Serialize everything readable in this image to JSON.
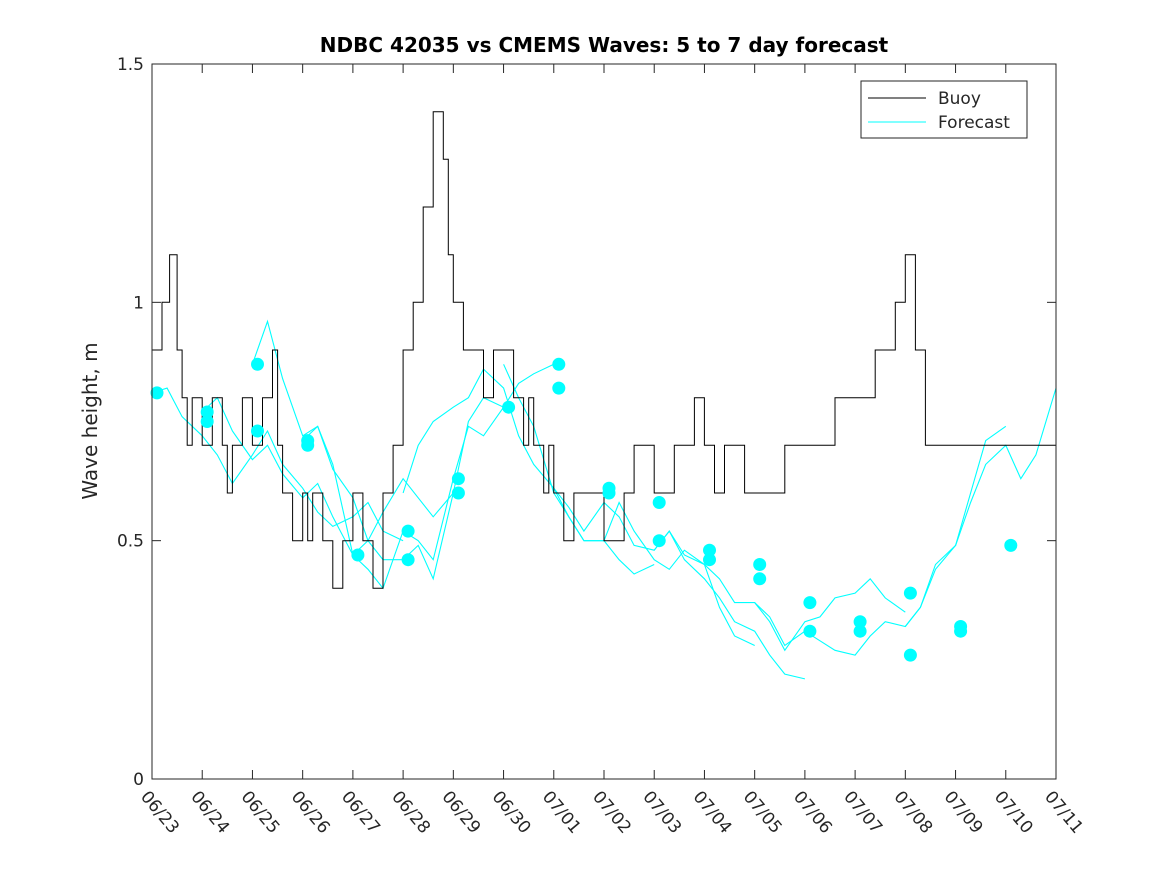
{
  "chart_data": {
    "type": "line",
    "title": "NDBC 42035 vs CMEMS Waves: 5 to 7 day forecast",
    "xlabel": "",
    "ylabel": "Wave height, m",
    "xlim": [
      "06/23",
      "07/11"
    ],
    "ylim": [
      0,
      1.5
    ],
    "xticks": [
      "06/23",
      "06/24",
      "06/25",
      "06/26",
      "06/27",
      "06/28",
      "06/29",
      "06/30",
      "07/01",
      "07/02",
      "07/03",
      "07/04",
      "07/05",
      "07/06",
      "07/07",
      "07/08",
      "07/09",
      "07/10",
      "07/11"
    ],
    "yticks": [
      "0",
      "0.5",
      "1",
      "1.5"
    ],
    "grid": false,
    "legend_position": "top-right",
    "legend": [
      {
        "label": "Buoy",
        "color": "#000000"
      },
      {
        "label": "Forecast",
        "color": "#00ffff"
      }
    ],
    "colors": {
      "buoy": "#000000",
      "forecast": "#00ffff"
    },
    "buoy": {
      "name": "Buoy",
      "x": [
        0.0,
        0.2,
        0.3,
        0.35,
        0.5,
        0.6,
        0.7,
        0.8,
        1.0,
        1.2,
        1.4,
        1.5,
        1.6,
        1.7,
        1.8,
        2.0,
        2.2,
        2.4,
        2.5,
        2.6,
        2.8,
        3.0,
        3.1,
        3.2,
        3.4,
        3.6,
        3.8,
        4.0,
        4.2,
        4.4,
        4.5,
        4.6,
        4.8,
        5.0,
        5.2,
        5.4,
        5.6,
        5.8,
        5.9,
        6.0,
        6.2,
        6.4,
        6.6,
        6.8,
        7.0,
        7.2,
        7.4,
        7.5,
        7.6,
        7.7,
        7.8,
        7.9,
        8.0,
        8.2,
        8.4,
        8.6,
        8.8,
        9.0,
        9.2,
        9.4,
        9.6,
        9.8,
        10.0,
        10.2,
        10.4,
        10.6,
        10.8,
        11.0,
        11.2,
        11.4,
        11.6,
        11.8,
        12.0,
        12.2,
        12.4,
        12.6,
        12.8,
        13.0,
        13.2,
        13.4,
        13.6,
        13.8,
        14.0,
        14.2,
        14.4,
        14.6,
        14.8,
        15.0,
        15.2,
        15.4,
        15.6,
        15.8,
        16.0,
        16.2,
        16.4,
        16.6,
        16.8,
        17.0,
        17.2,
        17.4,
        17.6,
        17.8,
        18.0
      ],
      "values": [
        0.9,
        1.0,
        1.0,
        1.1,
        0.9,
        0.8,
        0.7,
        0.8,
        0.7,
        0.8,
        0.7,
        0.6,
        0.7,
        0.7,
        0.8,
        0.7,
        0.8,
        0.9,
        0.7,
        0.6,
        0.5,
        0.6,
        0.5,
        0.6,
        0.5,
        0.4,
        0.5,
        0.6,
        0.5,
        0.4,
        0.4,
        0.6,
        0.7,
        0.9,
        1.0,
        1.2,
        1.4,
        1.3,
        1.1,
        1.0,
        0.9,
        0.9,
        0.8,
        0.9,
        0.9,
        0.8,
        0.7,
        0.8,
        0.7,
        0.7,
        0.6,
        0.7,
        0.6,
        0.5,
        0.6,
        0.6,
        0.6,
        0.5,
        0.5,
        0.6,
        0.7,
        0.7,
        0.6,
        0.6,
        0.7,
        0.7,
        0.8,
        0.7,
        0.6,
        0.7,
        0.7,
        0.6,
        0.6,
        0.6,
        0.6,
        0.7,
        0.7,
        0.7,
        0.7,
        0.7,
        0.8,
        0.8,
        0.8,
        0.8,
        0.9,
        0.9,
        1.0,
        1.1,
        0.9,
        0.7,
        0.7,
        0.7,
        0.7,
        0.7,
        0.7,
        0.7,
        0.7,
        0.7,
        0.7,
        0.7,
        0.7,
        0.7,
        0.7
      ]
    },
    "forecast_series": [
      {
        "x": [
          0.0,
          0.3,
          0.6,
          1.0,
          1.3,
          1.6,
          2.0,
          2.3,
          2.6,
          3.0,
          3.3,
          3.6,
          4.0,
          4.3,
          4.6,
          5.0
        ],
        "values": [
          0.81,
          0.82,
          0.76,
          0.72,
          0.68,
          0.62,
          0.68,
          0.73,
          0.66,
          0.61,
          0.56,
          0.53,
          0.55,
          0.58,
          0.52,
          0.5
        ]
      },
      {
        "x": [
          1.0,
          1.3,
          1.6,
          2.0,
          2.3,
          2.6,
          3.0,
          3.3,
          3.6,
          4.0,
          4.3,
          4.6,
          5.0,
          5.3,
          5.6,
          6.0
        ],
        "values": [
          0.77,
          0.8,
          0.73,
          0.67,
          0.7,
          0.64,
          0.59,
          0.62,
          0.55,
          0.47,
          0.5,
          0.56,
          0.63,
          0.59,
          0.55,
          0.6
        ]
      },
      {
        "x": [
          2.0,
          2.3,
          2.6,
          3.0,
          3.3,
          3.6,
          4.0,
          4.3,
          4.6,
          5.0,
          5.3,
          5.6,
          6.0,
          6.3,
          6.6,
          7.0
        ],
        "values": [
          0.87,
          0.96,
          0.84,
          0.72,
          0.74,
          0.66,
          0.47,
          0.44,
          0.4,
          0.52,
          0.5,
          0.46,
          0.63,
          0.74,
          0.72,
          0.78
        ]
      },
      {
        "x": [
          3.0,
          3.3,
          3.6,
          4.0,
          4.3,
          4.6,
          5.0,
          5.3,
          5.6,
          6.0,
          6.3,
          6.6,
          7.0,
          7.3,
          7.6,
          8.0
        ],
        "values": [
          0.71,
          0.74,
          0.65,
          0.59,
          0.5,
          0.46,
          0.46,
          0.49,
          0.42,
          0.6,
          0.75,
          0.8,
          0.78,
          0.83,
          0.85,
          0.87
        ]
      },
      {
        "x": [
          5.0,
          5.3,
          5.6,
          6.0,
          6.3,
          6.6,
          7.0,
          7.3,
          7.6,
          8.0,
          8.3,
          8.6,
          9.0,
          9.3,
          9.6,
          10.0
        ],
        "values": [
          0.6,
          0.7,
          0.75,
          0.78,
          0.8,
          0.86,
          0.82,
          0.72,
          0.66,
          0.61,
          0.55,
          0.5,
          0.5,
          0.46,
          0.43,
          0.45
        ]
      },
      {
        "x": [
          7.0,
          7.3,
          7.6,
          8.0,
          8.3,
          8.6,
          9.0,
          9.3,
          9.6,
          10.0,
          10.3,
          10.6,
          11.0,
          11.3,
          11.6,
          12.0
        ],
        "values": [
          0.87,
          0.8,
          0.74,
          0.6,
          0.55,
          0.5,
          0.5,
          0.58,
          0.52,
          0.46,
          0.44,
          0.48,
          0.45,
          0.36,
          0.3,
          0.28
        ]
      },
      {
        "x": [
          8.0,
          8.3,
          8.6,
          9.0,
          9.3,
          9.6,
          10.0,
          10.3,
          10.6,
          11.0,
          11.3,
          11.6,
          12.0,
          12.3,
          12.6,
          13.0
        ],
        "values": [
          0.61,
          0.57,
          0.52,
          0.58,
          0.55,
          0.49,
          0.48,
          0.52,
          0.46,
          0.42,
          0.38,
          0.33,
          0.31,
          0.26,
          0.22,
          0.21
        ]
      },
      {
        "x": [
          10.0,
          10.3,
          10.6,
          11.0,
          11.3,
          11.6,
          12.0,
          12.3,
          12.6,
          13.0,
          13.3,
          13.6,
          14.0,
          14.3,
          14.6,
          15.0
        ],
        "values": [
          0.48,
          0.52,
          0.47,
          0.45,
          0.42,
          0.37,
          0.37,
          0.33,
          0.27,
          0.33,
          0.34,
          0.38,
          0.39,
          0.42,
          0.38,
          0.35
        ]
      },
      {
        "x": [
          12.0,
          12.3,
          12.6,
          13.0,
          13.3,
          13.6,
          14.0,
          14.3,
          14.6,
          15.0,
          15.3,
          15.6,
          16.0,
          16.3,
          16.6,
          17.0
        ],
        "values": [
          0.37,
          0.34,
          0.28,
          0.31,
          0.29,
          0.27,
          0.26,
          0.3,
          0.33,
          0.32,
          0.36,
          0.44,
          0.49,
          0.6,
          0.71,
          0.74
        ]
      },
      {
        "x": [
          15.0,
          15.3,
          15.6,
          16.0,
          16.3,
          16.6,
          17.0,
          17.3,
          17.6,
          18.0
        ],
        "values": [
          0.32,
          0.36,
          0.45,
          0.49,
          0.58,
          0.66,
          0.7,
          0.63,
          0.68,
          0.82
        ]
      }
    ],
    "init_points": {
      "x": [
        0.1,
        1.1,
        1.1,
        2.1,
        2.1,
        3.1,
        3.1,
        4.1,
        5.1,
        5.1,
        6.1,
        6.1,
        7.1,
        8.1,
        8.1,
        9.1,
        9.1,
        10.1,
        10.1,
        11.1,
        11.1,
        12.1,
        12.1,
        13.1,
        13.1,
        14.1,
        14.1,
        15.1,
        15.1,
        16.1,
        16.1,
        17.1
      ],
      "values": [
        0.81,
        0.77,
        0.75,
        0.87,
        0.73,
        0.71,
        0.7,
        0.47,
        0.52,
        0.46,
        0.63,
        0.6,
        0.78,
        0.87,
        0.82,
        0.61,
        0.6,
        0.58,
        0.5,
        0.48,
        0.46,
        0.45,
        0.42,
        0.37,
        0.31,
        0.33,
        0.31,
        0.39,
        0.26,
        0.32,
        0.31,
        0.49
      ]
    }
  }
}
